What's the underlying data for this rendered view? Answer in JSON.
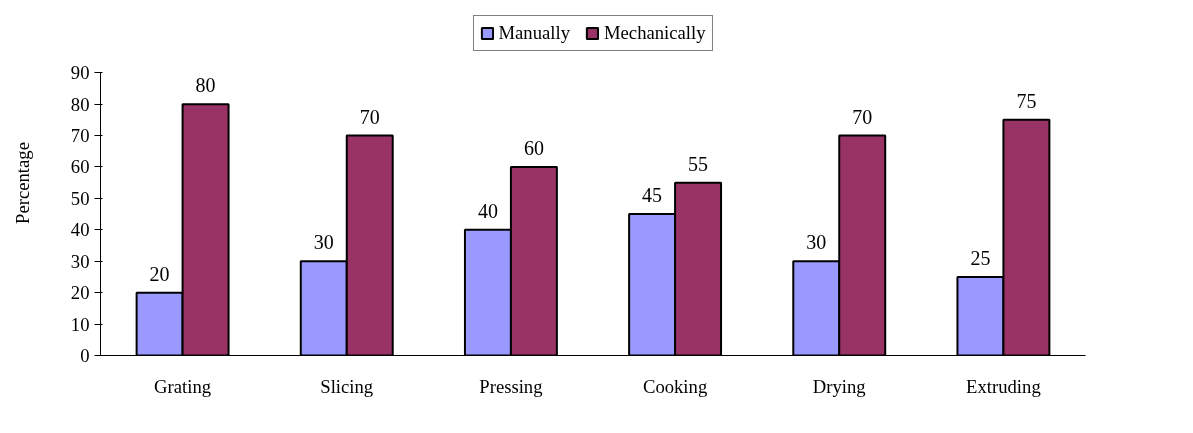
{
  "chart_data": {
    "type": "bar",
    "ylabel": "Percentage",
    "categories": [
      "Grating",
      "Slicing",
      "Pressing",
      "Cooking",
      "Drying",
      "Extruding"
    ],
    "series": [
      {
        "name": "Manually",
        "color": "#9999ff",
        "values": [
          20,
          30,
          40,
          45,
          30,
          25
        ]
      },
      {
        "name": "Mechanically",
        "color": "#993366",
        "values": [
          80,
          70,
          60,
          55,
          70,
          75
        ]
      }
    ],
    "ylim": [
      0,
      90
    ],
    "yticks": [
      0,
      10,
      20,
      30,
      40,
      50,
      60,
      70,
      80,
      90
    ],
    "grid": false,
    "legend": "top",
    "data_labels": true
  }
}
